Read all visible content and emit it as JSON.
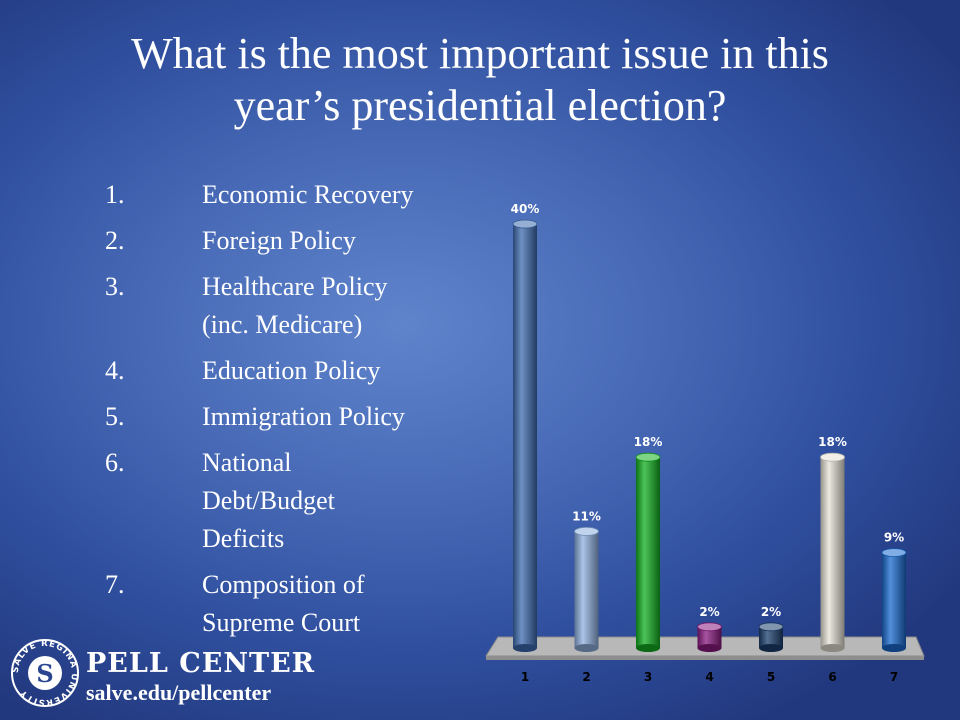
{
  "slide": {
    "title_line1": "What is the most important issue in this",
    "title_line2": "year’s presidential election?"
  },
  "options": [
    {
      "num": "1.",
      "label": "Economic Recovery"
    },
    {
      "num": "2.",
      "label": "Foreign Policy"
    },
    {
      "num": "3.",
      "label": "Healthcare Policy (inc. Medicare)"
    },
    {
      "num": "4.",
      "label": "Education Policy"
    },
    {
      "num": "5.",
      "label": "Immigration Policy"
    },
    {
      "num": "6.",
      "label": "National Debt/Budget Deficits"
    },
    {
      "num": "7.",
      "label": "Composition of Supreme Court"
    }
  ],
  "chart_data": {
    "type": "bar",
    "categories": [
      "1",
      "2",
      "3",
      "4",
      "5",
      "6",
      "7"
    ],
    "values": [
      40,
      11,
      18,
      2,
      2,
      18,
      9
    ],
    "data_labels": [
      "40%",
      "11%",
      "18%",
      "2%",
      "2%",
      "18%",
      "9%"
    ],
    "colors": [
      "#3d6bb0",
      "#8fb0e0",
      "#12b020",
      "#8a1a80",
      "#1b3f6e",
      "#e6e2d6",
      "#1a6ad0"
    ],
    "title": "",
    "xlabel": "",
    "ylabel": "",
    "ylim": [
      0,
      40
    ],
    "grid": false,
    "legend": "none"
  },
  "footer": {
    "seal_text": "SALVE REGINA UNIVERSITY",
    "brand": "PELL CENTER",
    "url": "salve.edu/pellcenter"
  }
}
